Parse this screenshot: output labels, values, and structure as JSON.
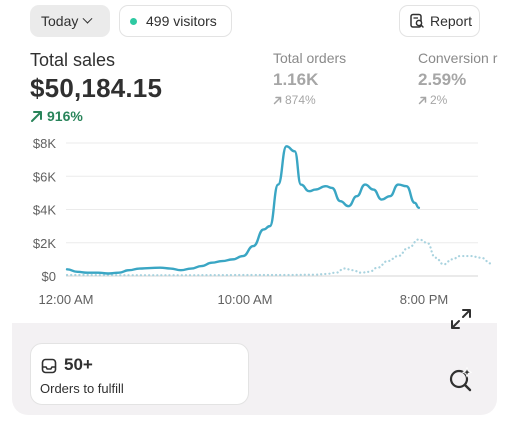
{
  "header": {
    "date_filter": "Today",
    "visitors": "499 visitors",
    "report_label": "Report"
  },
  "total_sales": {
    "label": "Total sales",
    "value": "$50,184.15",
    "change": "916%"
  },
  "total_orders": {
    "label": "Total orders",
    "value": "1.16K",
    "change": "874%"
  },
  "conversion": {
    "label": "Conversion r",
    "value": "2.59%",
    "change": "2%"
  },
  "chart_data": {
    "type": "line",
    "y_ticks": [
      "$8K",
      "$6K",
      "$4K",
      "$2K",
      "$0"
    ],
    "x_ticks": [
      "12:00 AM",
      "10:00 AM",
      "8:00 PM"
    ],
    "ylim": [
      0,
      8000
    ],
    "grid": true,
    "series": [
      {
        "style": "solid",
        "color": "#3aa6c4",
        "points": [
          [
            0,
            400
          ],
          [
            0.5,
            250
          ],
          [
            1,
            200
          ],
          [
            1.5,
            200
          ],
          [
            2,
            150
          ],
          [
            2.5,
            200
          ],
          [
            3,
            350
          ],
          [
            3.5,
            450
          ],
          [
            4,
            480
          ],
          [
            4.5,
            500
          ],
          [
            5,
            450
          ],
          [
            5.5,
            350
          ],
          [
            6,
            450
          ],
          [
            6.5,
            600
          ],
          [
            7,
            800
          ],
          [
            7.5,
            900
          ],
          [
            8,
            1000
          ],
          [
            8.5,
            1200
          ],
          [
            9,
            1800
          ],
          [
            9.5,
            2800
          ],
          [
            9.8,
            3000
          ],
          [
            10.2,
            5500
          ],
          [
            10.6,
            7800
          ],
          [
            11,
            7500
          ],
          [
            11.3,
            5500
          ],
          [
            11.7,
            5100
          ],
          [
            12,
            5200
          ],
          [
            12.5,
            5400
          ],
          [
            12.8,
            5300
          ],
          [
            13.2,
            4500
          ],
          [
            13.6,
            4200
          ],
          [
            14,
            4800
          ],
          [
            14.4,
            5500
          ],
          [
            14.8,
            5200
          ],
          [
            15.2,
            4600
          ],
          [
            15.6,
            4800
          ],
          [
            16,
            5500
          ],
          [
            16.4,
            5400
          ],
          [
            16.8,
            4400
          ],
          [
            17,
            4100
          ]
        ]
      },
      {
        "style": "dotted",
        "color": "#a9d3df",
        "points": [
          [
            0,
            60
          ],
          [
            3,
            50
          ],
          [
            6,
            50
          ],
          [
            9,
            60
          ],
          [
            10.5,
            60
          ],
          [
            12,
            80
          ],
          [
            12.5,
            120
          ],
          [
            13,
            200
          ],
          [
            13.4,
            450
          ],
          [
            13.8,
            350
          ],
          [
            14.2,
            200
          ],
          [
            14.6,
            250
          ],
          [
            15,
            500
          ],
          [
            15.5,
            900
          ],
          [
            16,
            1200
          ],
          [
            16.5,
            1700
          ],
          [
            17,
            2200
          ],
          [
            17.4,
            2000
          ],
          [
            17.8,
            1100
          ],
          [
            18.2,
            700
          ],
          [
            18.6,
            1000
          ],
          [
            19,
            1200
          ],
          [
            19.5,
            1200
          ],
          [
            20,
            1100
          ],
          [
            20.5,
            750
          ]
        ]
      }
    ]
  },
  "fulfill": {
    "value": "50+",
    "label": "Orders to fulfill"
  },
  "icons": {
    "date": "chevron-down-icon",
    "visitors": "status-dot-icon",
    "report": "report-search-icon",
    "expand": "expand-icon",
    "search_ai": "search-sparkle-icon",
    "inbox": "inbox-icon"
  }
}
